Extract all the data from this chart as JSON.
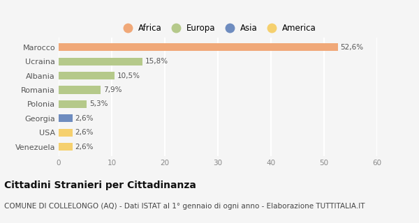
{
  "countries": [
    "Marocco",
    "Ucraina",
    "Albania",
    "Romania",
    "Polonia",
    "Georgia",
    "USA",
    "Venezuela"
  ],
  "values": [
    52.6,
    15.8,
    10.5,
    7.9,
    5.3,
    2.6,
    2.6,
    2.6
  ],
  "labels": [
    "52,6%",
    "15,8%",
    "10,5%",
    "7,9%",
    "5,3%",
    "2,6%",
    "2,6%",
    "2,6%"
  ],
  "bar_colors": [
    "#f0a878",
    "#b5c98a",
    "#b5c98a",
    "#b5c98a",
    "#b5c98a",
    "#6e8cbf",
    "#f5d06e",
    "#f5d06e"
  ],
  "legend_labels": [
    "Africa",
    "Europa",
    "Asia",
    "America"
  ],
  "legend_colors": [
    "#f0a878",
    "#b5c98a",
    "#6e8cbf",
    "#f5d06e"
  ],
  "xlim": [
    0,
    60
  ],
  "xticks": [
    0,
    10,
    20,
    30,
    40,
    50,
    60
  ],
  "title": "Cittadini Stranieri per Cittadinanza",
  "subtitle": "COMUNE DI COLLELONGO (AQ) - Dati ISTAT al 1° gennaio di ogni anno - Elaborazione TUTTITALIA.IT",
  "background_color": "#f5f5f5",
  "grid_color": "#ffffff",
  "title_fontsize": 10,
  "subtitle_fontsize": 7.5,
  "bar_height": 0.55
}
